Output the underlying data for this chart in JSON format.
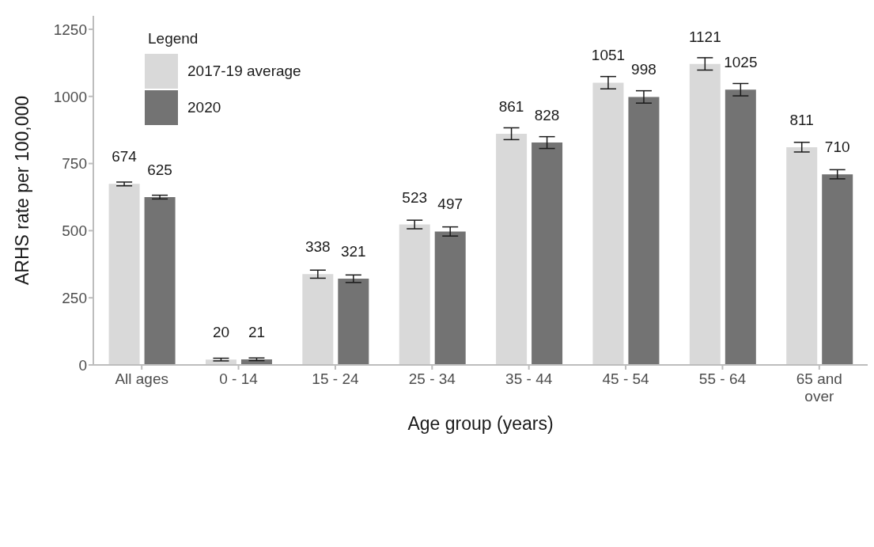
{
  "chart_data": {
    "type": "bar",
    "xlabel": "Age group (years)",
    "ylabel": "ARHS rate per 100,000",
    "legend_title": "Legend",
    "categories": [
      "All ages",
      "0 - 14",
      "15 - 24",
      "25 - 34",
      "35 - 44",
      "45 - 54",
      "55 - 64",
      "65 and over"
    ],
    "series": [
      {
        "name": "2017-19 average",
        "color": "#d9d9d9",
        "values": [
          674,
          20,
          338,
          523,
          861,
          1051,
          1121,
          811
        ],
        "errors": [
          7,
          5,
          15,
          16,
          22,
          23,
          23,
          18
        ]
      },
      {
        "name": "2020",
        "color": "#737373",
        "values": [
          625,
          21,
          321,
          497,
          828,
          998,
          1025,
          710
        ],
        "errors": [
          7,
          5,
          14,
          17,
          22,
          23,
          23,
          17
        ]
      }
    ],
    "ylim": [
      0,
      1300
    ],
    "yticks": [
      0,
      250,
      500,
      750,
      1000,
      1250
    ],
    "grid": false,
    "legend": "top left",
    "data_labels": true
  }
}
